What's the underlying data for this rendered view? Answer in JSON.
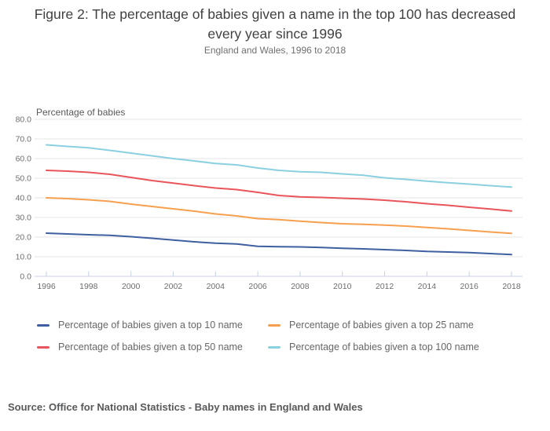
{
  "header": {
    "title": "Figure 2: The percentage of babies given a name in the top 100 has decreased every year since 1996",
    "subtitle": "England and Wales, 1996 to 2018"
  },
  "chart_data": {
    "type": "line",
    "title": "Figure 2: The percentage of babies given a name in the top 100 has decreased every year since 1996",
    "subtitle": "England and Wales, 1996 to 2018",
    "ylabel": "Percentage of babies",
    "xlabel": "",
    "x": [
      1996,
      1997,
      1998,
      1999,
      2000,
      2001,
      2002,
      2003,
      2004,
      2005,
      2006,
      2007,
      2008,
      2009,
      2010,
      2011,
      2012,
      2013,
      2014,
      2015,
      2016,
      2017,
      2018
    ],
    "x_tick_labels": [
      "1996",
      "1998",
      "2000",
      "2002",
      "2004",
      "2006",
      "2008",
      "2010",
      "2012",
      "2014",
      "2016",
      "2018"
    ],
    "ylim": [
      0,
      80
    ],
    "y_tick_step": 10,
    "y_tick_labels": [
      "0.0",
      "10.0",
      "20.0",
      "30.0",
      "40.0",
      "50.0",
      "60.0",
      "70.0",
      "80.0"
    ],
    "grid": "horizontal",
    "legend_position": "bottom",
    "series": [
      {
        "name": "Percentage of babies given a top 10 name",
        "color": "#3e5fa0",
        "values": [
          22.0,
          21.6,
          21.2,
          20.9,
          20.2,
          19.4,
          18.5,
          17.6,
          16.9,
          16.5,
          15.3,
          15.1,
          15.0,
          14.7,
          14.3,
          14.0,
          13.6,
          13.2,
          12.7,
          12.4,
          12.1,
          11.6,
          11.1
        ]
      },
      {
        "name": "Percentage of babies given a top 25 name",
        "color": "#f6a04f",
        "values": [
          40.0,
          39.6,
          39.0,
          38.2,
          36.8,
          35.6,
          34.4,
          33.2,
          31.8,
          30.8,
          29.4,
          28.9,
          28.1,
          27.4,
          26.8,
          26.5,
          26.1,
          25.6,
          24.9,
          24.2,
          23.4,
          22.6,
          21.9
        ]
      },
      {
        "name": "Percentage of babies given a top 50 name",
        "color": "#e9555a",
        "values": [
          54.0,
          53.6,
          53.0,
          52.0,
          50.4,
          48.8,
          47.5,
          46.2,
          45.0,
          44.2,
          42.8,
          41.2,
          40.5,
          40.2,
          39.8,
          39.4,
          38.8,
          38.0,
          37.0,
          36.2,
          35.2,
          34.3,
          33.3
        ]
      },
      {
        "name": "Percentage of babies given a top 100 name",
        "color": "#8bd0e0",
        "values": [
          67.0,
          66.2,
          65.5,
          64.2,
          62.8,
          61.4,
          60.0,
          58.8,
          57.5,
          56.8,
          55.2,
          54.0,
          53.3,
          53.0,
          52.2,
          51.5,
          50.2,
          49.4,
          48.5,
          47.7,
          47.0,
          46.2,
          45.5
        ]
      }
    ],
    "axis_colors": {
      "gridline": "#e4e4e4",
      "axis_line": "#c7d1e5",
      "tick_label": "#6e6e6e",
      "axis_title": "#595959"
    }
  },
  "footer": {
    "source": "Source: Office for National Statistics - Baby names in England and Wales"
  }
}
